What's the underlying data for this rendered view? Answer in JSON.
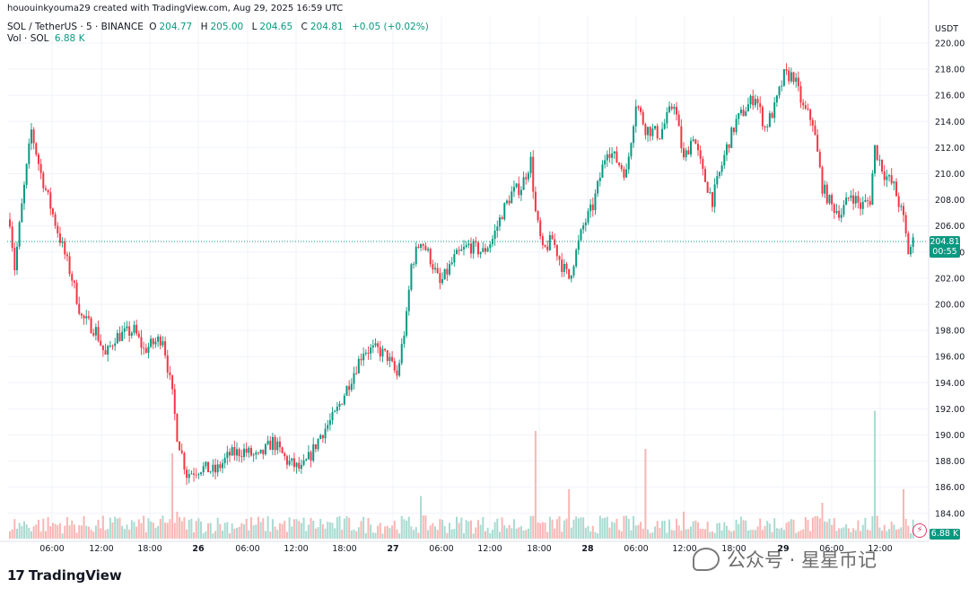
{
  "header": {
    "credit": "hououinkyouma29 created with TradingView.com, Aug 29, 2025 16:59 UTC",
    "symbol": "SOL / TetherUS · 5 · BINANCE",
    "ohlc": [
      {
        "key": "O",
        "value": "204.77"
      },
      {
        "key": "H",
        "value": "205.00"
      },
      {
        "key": "L",
        "value": "204.65"
      },
      {
        "key": "C",
        "value": "204.81"
      }
    ],
    "change": "+0.05 (+0.02%)",
    "vol_label": "Vol · SOL",
    "vol_value": "6.88 K"
  },
  "axis": {
    "currency": "USDT",
    "price_tag": "204.81",
    "countdown": "00:55",
    "vol_tag": "6.88 K"
  },
  "footer": {
    "logo_text": "TradingView",
    "watermark": "公众号 · 星星币记"
  },
  "colors": {
    "up": "#089981",
    "down": "#f23645",
    "grid": "#f0f3fa",
    "text": "#131722"
  },
  "chart_data": {
    "type": "candlestick",
    "ylim": [
      183,
      221
    ],
    "y_ticks": [
      184,
      186,
      188,
      190,
      192,
      194,
      196,
      198,
      200,
      202,
      204,
      206,
      208,
      210,
      212,
      214,
      216,
      218,
      220
    ],
    "x_ticks": [
      {
        "label": "06:00",
        "bold": false
      },
      {
        "label": "12:00",
        "bold": false
      },
      {
        "label": "18:00",
        "bold": false
      },
      {
        "label": "26",
        "bold": true
      },
      {
        "label": "06:00",
        "bold": false
      },
      {
        "label": "12:00",
        "bold": false
      },
      {
        "label": "18:00",
        "bold": false
      },
      {
        "label": "27",
        "bold": true
      },
      {
        "label": "06:00",
        "bold": false
      },
      {
        "label": "12:00",
        "bold": false
      },
      {
        "label": "18:00",
        "bold": false
      },
      {
        "label": "28",
        "bold": true
      },
      {
        "label": "06:00",
        "bold": false
      },
      {
        "label": "12:00",
        "bold": false
      },
      {
        "label": "18:00",
        "bold": false
      },
      {
        "label": "29",
        "bold": true
      },
      {
        "label": "06:00",
        "bold": false
      },
      {
        "label": "12:00",
        "bold": false
      }
    ],
    "price_path": [
      [
        0,
        206.5
      ],
      [
        2,
        202.8
      ],
      [
        5,
        207.5
      ],
      [
        9,
        213.3
      ],
      [
        13,
        210
      ],
      [
        17,
        207.5
      ],
      [
        21,
        205
      ],
      [
        26,
        202
      ],
      [
        30,
        199
      ],
      [
        36,
        198
      ],
      [
        40,
        196
      ],
      [
        44,
        197.5
      ],
      [
        52,
        198
      ],
      [
        56,
        196.5
      ],
      [
        60,
        197
      ],
      [
        64,
        197.5
      ],
      [
        68,
        193
      ],
      [
        70,
        190
      ],
      [
        74,
        187
      ],
      [
        80,
        187.5
      ],
      [
        86,
        187.2
      ],
      [
        92,
        188.5
      ],
      [
        98,
        188.8
      ],
      [
        104,
        188.2
      ],
      [
        110,
        189.5
      ],
      [
        116,
        188
      ],
      [
        122,
        187.3
      ],
      [
        126,
        188.5
      ],
      [
        130,
        190
      ],
      [
        136,
        191.5
      ],
      [
        142,
        194
      ],
      [
        148,
        196.5
      ],
      [
        154,
        196.5
      ],
      [
        158,
        196
      ],
      [
        162,
        194.5
      ],
      [
        166,
        199
      ],
      [
        168,
        203
      ],
      [
        172,
        205
      ],
      [
        176,
        203.5
      ],
      [
        180,
        201.5
      ],
      [
        186,
        203.5
      ],
      [
        192,
        204.5
      ],
      [
        198,
        204
      ],
      [
        202,
        205
      ],
      [
        206,
        207
      ],
      [
        210,
        208.5
      ],
      [
        214,
        209
      ],
      [
        218,
        211
      ],
      [
        220,
        207
      ],
      [
        223,
        204
      ],
      [
        227,
        205
      ],
      [
        231,
        203
      ],
      [
        234,
        202
      ],
      [
        240,
        206
      ],
      [
        244,
        207.5
      ],
      [
        250,
        212
      ],
      [
        254,
        211
      ],
      [
        258,
        210
      ],
      [
        262,
        215.5
      ],
      [
        266,
        213.5
      ],
      [
        272,
        213
      ],
      [
        278,
        215.5
      ],
      [
        282,
        211
      ],
      [
        286,
        213
      ],
      [
        290,
        210
      ],
      [
        294,
        208
      ],
      [
        300,
        212
      ],
      [
        304,
        214
      ],
      [
        308,
        215
      ],
      [
        312,
        216
      ],
      [
        316,
        213.5
      ],
      [
        320,
        215
      ],
      [
        324,
        217.5
      ],
      [
        328,
        217.5
      ],
      [
        332,
        215
      ],
      [
        336,
        214
      ],
      [
        340,
        209
      ],
      [
        344,
        207.5
      ],
      [
        348,
        207
      ],
      [
        352,
        208.5
      ],
      [
        356,
        207.5
      ],
      [
        360,
        208
      ],
      [
        362,
        212
      ],
      [
        366,
        210
      ],
      [
        370,
        209
      ],
      [
        374,
        206.5
      ],
      [
        376,
        204
      ],
      [
        378,
        204.8
      ]
    ],
    "volume": {
      "base_level": 0.09,
      "spikes": [
        {
          "x": 68,
          "v": 0.38
        },
        {
          "x": 70,
          "v": 0.12
        },
        {
          "x": 172,
          "v": 0.19
        },
        {
          "x": 220,
          "v": 0.48
        },
        {
          "x": 234,
          "v": 0.22
        },
        {
          "x": 266,
          "v": 0.4
        },
        {
          "x": 282,
          "v": 0.12
        },
        {
          "x": 340,
          "v": 0.16
        },
        {
          "x": 362,
          "v": 0.57
        },
        {
          "x": 374,
          "v": 0.22
        }
      ],
      "current": "6.88 K"
    }
  }
}
